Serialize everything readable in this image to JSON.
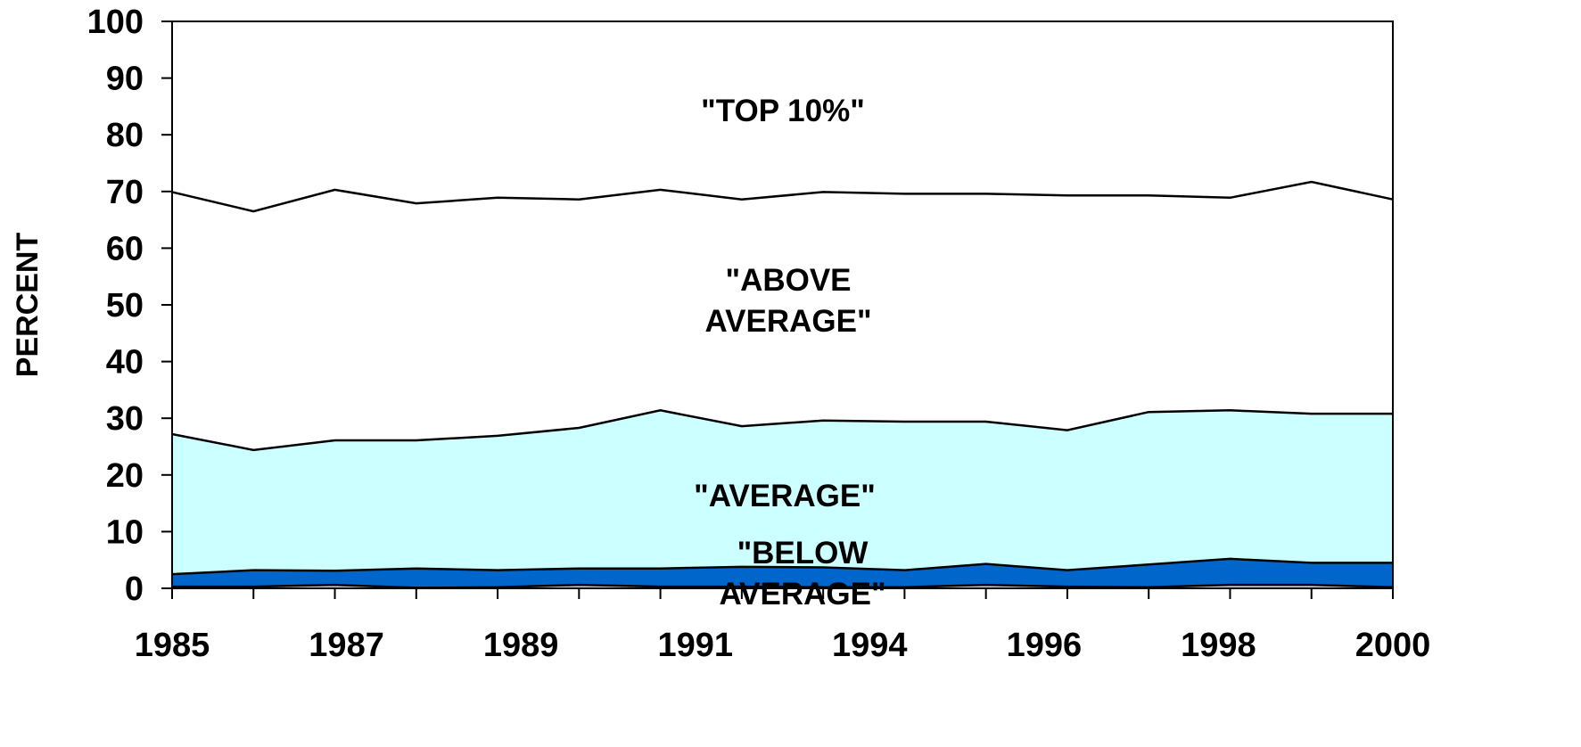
{
  "chart_data": {
    "type": "area",
    "stacked": true,
    "ylabel": "PERCENT",
    "xlabel": "",
    "ylim": [
      0,
      100
    ],
    "yticks": [
      0,
      10,
      20,
      30,
      40,
      50,
      60,
      70,
      80,
      90,
      100
    ],
    "x": [
      1985,
      1986,
      1987,
      1988,
      1989,
      1990,
      1991,
      1992,
      1993,
      1994,
      1995,
      1996,
      1997,
      1998,
      1999,
      2000
    ],
    "x_tick_labels": [
      "1985",
      "1987",
      "1989",
      "1991",
      "1994",
      "1996",
      "1998",
      "2000"
    ],
    "boundaries": [
      {
        "values": [
          0.3,
          0.3,
          0.6,
          0.1,
          0.2,
          0.6,
          0.3,
          0.3,
          0.2,
          0.2,
          0.6,
          0.3,
          0.2,
          0.6,
          0.6,
          0.2
        ]
      },
      {
        "values": [
          2.5,
          3.2,
          3.1,
          3.5,
          3.2,
          3.5,
          3.5,
          3.8,
          3.7,
          3.2,
          4.3,
          3.2,
          4.2,
          5.2,
          4.5,
          4.5
        ]
      },
      {
        "values": [
          27.2,
          24.4,
          26.1,
          26.1,
          26.9,
          28.3,
          31.4,
          28.6,
          29.6,
          29.4,
          29.4,
          27.9,
          31.1,
          31.4,
          30.8,
          30.8
        ]
      },
      {
        "values": [
          69.9,
          66.5,
          70.3,
          67.9,
          68.9,
          68.6,
          70.3,
          68.6,
          69.9,
          69.6,
          69.6,
          69.3,
          69.3,
          68.9,
          71.7,
          68.6
        ]
      }
    ],
    "fill_colors": [
      "#d2d2e6",
      "#000080",
      "#0066cc",
      "#ccffff",
      "#ffffff"
    ],
    "regions": [
      {
        "label_lines": [
          "\"BELOW",
          "AVERAGE\""
        ],
        "color": "#000080"
      },
      {
        "label_lines": [
          "\"AVERAGE\""
        ],
        "color": "#0066cc"
      },
      {
        "label_lines": [
          "\"ABOVE",
          "AVERAGE\""
        ],
        "color": "#ccffff"
      },
      {
        "label_lines": [
          "\"TOP 10%\""
        ],
        "color": "#ffffff"
      }
    ]
  }
}
